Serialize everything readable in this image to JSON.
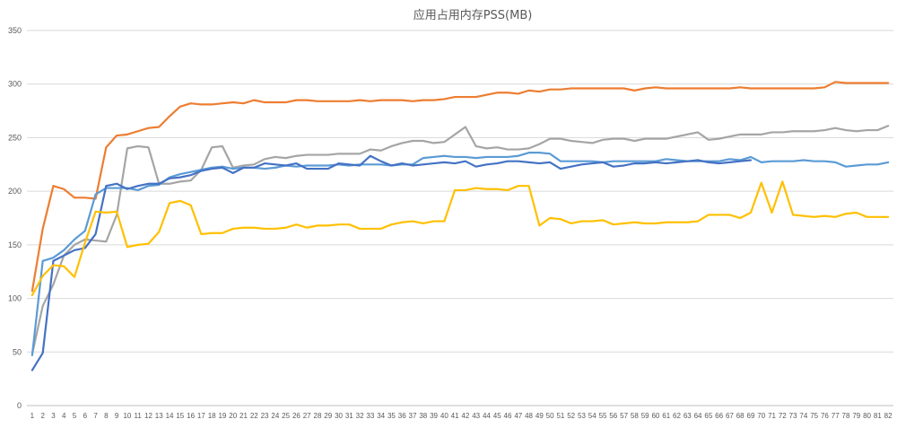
{
  "colors": {
    "orange": "#ED7D31",
    "gray": "#A5A5A5",
    "light_blue": "#5B9BD5",
    "dark_blue": "#4472C4",
    "yellow": "#FFC000",
    "gridline": "#D9D9D9",
    "text": "#595959"
  },
  "chart_data": {
    "type": "line",
    "title": "应用占用内存PSS(MB)",
    "xlabel": "",
    "ylabel": "",
    "ylim": [
      0,
      350
    ],
    "yticks": [
      0,
      50,
      100,
      150,
      200,
      250,
      300,
      350
    ],
    "x": [
      1,
      2,
      3,
      4,
      5,
      6,
      7,
      8,
      9,
      10,
      11,
      12,
      13,
      14,
      15,
      16,
      17,
      18,
      19,
      20,
      21,
      22,
      23,
      24,
      25,
      26,
      27,
      28,
      29,
      30,
      31,
      32,
      33,
      34,
      35,
      36,
      37,
      38,
      39,
      40,
      41,
      42,
      43,
      44,
      45,
      46,
      47,
      48,
      49,
      50,
      51,
      52,
      53,
      54,
      55,
      56,
      57,
      58,
      59,
      60,
      61,
      62,
      63,
      64,
      65,
      66,
      67,
      68,
      69,
      70,
      71,
      72,
      73,
      74,
      75,
      76,
      77,
      78,
      79,
      80,
      81,
      82
    ],
    "grid": true,
    "legend": "none",
    "series": [
      {
        "color": "#ED7D31",
        "values": [
          107,
          165,
          205,
          202,
          194,
          194,
          193,
          241,
          252,
          253,
          256,
          259,
          260,
          270,
          279,
          282,
          281,
          281,
          282,
          283,
          282,
          285,
          283,
          283,
          283,
          285,
          285,
          284,
          284,
          284,
          284,
          285,
          284,
          285,
          285,
          285,
          284,
          285,
          285,
          286,
          288,
          288,
          288,
          290,
          292,
          292,
          291,
          294,
          293,
          295,
          295,
          296,
          296,
          296,
          296,
          296,
          296,
          294,
          296,
          297,
          296,
          296,
          296,
          296,
          296,
          296,
          296,
          297,
          296,
          296,
          296,
          296,
          296,
          296,
          296,
          297,
          302,
          301,
          301,
          301,
          301,
          301
        ]
      },
      {
        "color": "#A5A5A5",
        "values": [
          48,
          93,
          113,
          140,
          150,
          155,
          154,
          153,
          178,
          240,
          242,
          241,
          207,
          207,
          209,
          210,
          220,
          241,
          242,
          222,
          224,
          225,
          230,
          232,
          231,
          233,
          234,
          234,
          234,
          235,
          235,
          235,
          239,
          238,
          242,
          245,
          247,
          247,
          245,
          246,
          253,
          260,
          242,
          240,
          241,
          239,
          239,
          240,
          244,
          249,
          249,
          247,
          246,
          245,
          248,
          249,
          249,
          247,
          249,
          249,
          249,
          251,
          253,
          255,
          248,
          249,
          251,
          253,
          253,
          253,
          255,
          255,
          256,
          256,
          256,
          257,
          259,
          257,
          256,
          257,
          257,
          261
        ]
      },
      {
        "color": "#5B9BD5",
        "values": [
          47,
          135,
          138,
          145,
          155,
          163,
          197,
          203,
          203,
          203,
          201,
          205,
          206,
          213,
          216,
          218,
          220,
          222,
          223,
          221,
          222,
          222,
          221,
          222,
          224,
          223,
          224,
          224,
          224,
          225,
          224,
          225,
          225,
          225,
          224,
          225,
          225,
          231,
          232,
          233,
          232,
          232,
          231,
          232,
          232,
          232,
          233,
          236,
          236,
          235,
          228,
          228,
          228,
          228,
          227,
          228,
          228,
          228,
          228,
          228,
          230,
          229,
          228,
          228,
          228,
          228,
          230,
          229,
          232,
          227,
          228,
          228,
          228,
          229,
          228,
          228,
          227,
          223,
          224,
          225,
          225,
          227
        ]
      },
      {
        "color": "#4472C4",
        "values": [
          33,
          49,
          135,
          140,
          145,
          147,
          160,
          205,
          207,
          202,
          205,
          207,
          207,
          212,
          213,
          215,
          219,
          221,
          222,
          217,
          222,
          222,
          226,
          225,
          224,
          226,
          221,
          221,
          221,
          226,
          225,
          224,
          233,
          228,
          224,
          226,
          224,
          225,
          226,
          227,
          226,
          228,
          223,
          225,
          226,
          228,
          228,
          227,
          226,
          227,
          221,
          223,
          225,
          226,
          227,
          223,
          224,
          226,
          226,
          227,
          226,
          227,
          228,
          229,
          227,
          226,
          227,
          228,
          229,
          null,
          null,
          null,
          null,
          null,
          null,
          null,
          null,
          null,
          null,
          null,
          null,
          null
        ]
      },
      {
        "color": "#FFC000",
        "values": [
          103,
          121,
          131,
          130,
          120,
          152,
          181,
          180,
          181,
          148,
          150,
          151,
          162,
          189,
          191,
          187,
          160,
          161,
          161,
          165,
          166,
          166,
          165,
          165,
          166,
          169,
          166,
          168,
          168,
          169,
          169,
          165,
          165,
          165,
          169,
          171,
          172,
          170,
          172,
          172,
          201,
          201,
          203,
          202,
          202,
          201,
          205,
          205,
          168,
          175,
          174,
          170,
          172,
          172,
          173,
          169,
          170,
          171,
          170,
          170,
          171,
          171,
          171,
          172,
          178,
          178,
          178,
          175,
          180,
          208,
          180,
          209,
          178,
          177,
          176,
          177,
          176,
          179,
          180,
          176,
          176,
          176
        ]
      }
    ]
  }
}
